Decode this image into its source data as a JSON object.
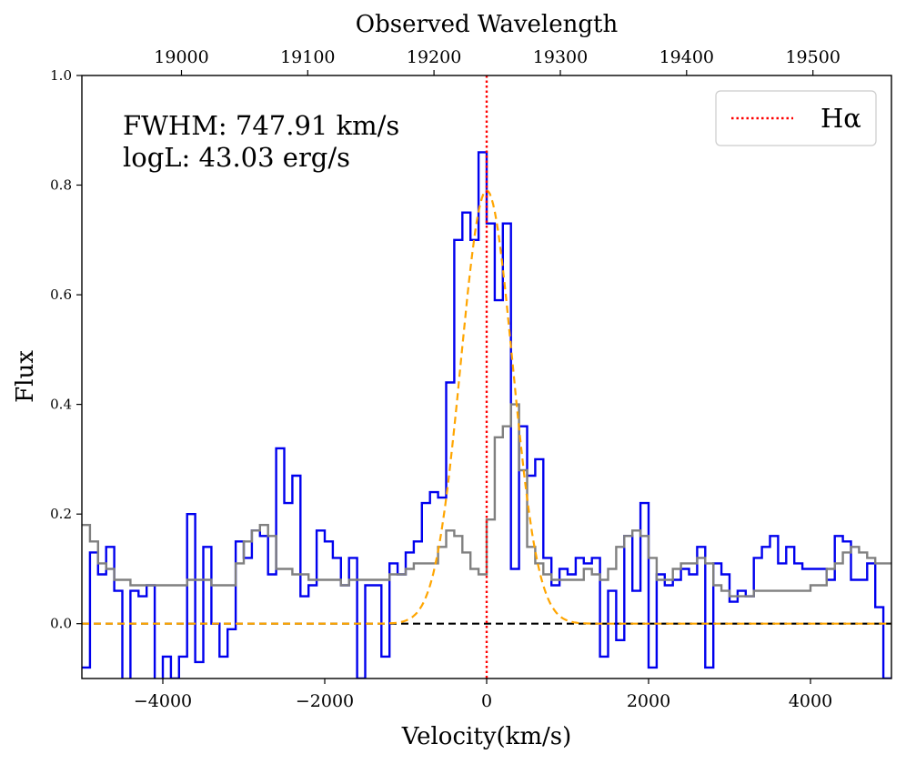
{
  "chart_data": {
    "type": "line",
    "title": "",
    "xlabel": "Velocity(km/s)",
    "ylabel": "Flux",
    "secondary_xlabel": "Observed Wavelength",
    "xlim": [
      -5000,
      5000
    ],
    "ylim": [
      -0.1,
      1.0
    ],
    "x_ticks": [
      -4000,
      -2000,
      0,
      2000,
      4000
    ],
    "x_tick_labels": [
      "−4000",
      "−2000",
      "0",
      "2000",
      "4000"
    ],
    "y_ticks": [
      0.0,
      0.2,
      0.4,
      0.6,
      0.8,
      1.0
    ],
    "y_tick_labels": [
      "0.0",
      "0.2",
      "0.4",
      "0.6",
      "0.8",
      "1.0"
    ],
    "top_ticks_velocity": [
      -3770,
      -2210,
      -650,
      910,
      2470,
      4030
    ],
    "top_tick_labels": [
      "19000",
      "19100",
      "19200",
      "19300",
      "19400",
      "19500"
    ],
    "annotations": [
      "FWHM: 747.91 km/s",
      "logL: 43.03 erg/s"
    ],
    "legend": {
      "position": "upper-right",
      "entries": [
        {
          "label": "Hα",
          "style": "red-dotted"
        }
      ]
    },
    "reference_lines": [
      {
        "name": "zero-line",
        "axis": "y",
        "value": 0.0,
        "style": "black-dashed"
      },
      {
        "name": "halpha-line",
        "axis": "x",
        "value": 0,
        "style": "red-dotted"
      }
    ],
    "series": [
      {
        "name": "spectrum",
        "color": "#0000ee",
        "step": true,
        "x": [
          -5000,
          -4900,
          -4800,
          -4700,
          -4600,
          -4500,
          -4400,
          -4300,
          -4200,
          -4100,
          -4000,
          -3900,
          -3800,
          -3700,
          -3600,
          -3500,
          -3400,
          -3300,
          -3200,
          -3100,
          -3000,
          -2900,
          -2800,
          -2700,
          -2600,
          -2500,
          -2400,
          -2300,
          -2200,
          -2100,
          -2000,
          -1900,
          -1800,
          -1700,
          -1600,
          -1500,
          -1400,
          -1300,
          -1200,
          -1100,
          -1000,
          -900,
          -800,
          -700,
          -600,
          -500,
          -400,
          -300,
          -200,
          -100,
          0,
          100,
          200,
          300,
          400,
          500,
          600,
          700,
          800,
          900,
          1000,
          1100,
          1200,
          1300,
          1400,
          1500,
          1600,
          1700,
          1800,
          1900,
          2000,
          2100,
          2200,
          2300,
          2400,
          2500,
          2600,
          2700,
          2800,
          2900,
          3000,
          3100,
          3200,
          3300,
          3400,
          3500,
          3600,
          3700,
          3800,
          3900,
          4000,
          4100,
          4200,
          4300,
          4400,
          4500,
          4600,
          4700,
          4800,
          4900
        ],
        "y": [
          -0.08,
          0.13,
          0.09,
          0.14,
          0.06,
          -0.12,
          0.06,
          0.05,
          0.07,
          -0.11,
          -0.06,
          -0.1,
          -0.06,
          0.2,
          -0.07,
          0.14,
          0.0,
          -0.06,
          -0.01,
          0.15,
          0.12,
          0.17,
          0.16,
          0.09,
          0.32,
          0.22,
          0.27,
          0.05,
          0.07,
          0.17,
          0.15,
          0.12,
          0.07,
          0.12,
          -0.1,
          0.07,
          0.07,
          -0.06,
          0.11,
          0.09,
          0.13,
          0.15,
          0.22,
          0.24,
          0.23,
          0.44,
          0.7,
          0.75,
          0.7,
          0.86,
          0.73,
          0.59,
          0.73,
          0.1,
          0.36,
          0.27,
          0.3,
          0.12,
          0.07,
          0.1,
          0.09,
          0.12,
          0.11,
          0.12,
          -0.06,
          0.06,
          -0.03,
          0.16,
          0.06,
          0.22,
          -0.08,
          0.09,
          0.07,
          0.08,
          0.1,
          0.09,
          0.14,
          -0.08,
          0.11,
          0.09,
          0.04,
          0.06,
          0.05,
          0.12,
          0.14,
          0.16,
          0.11,
          0.14,
          0.11,
          0.1,
          0.1,
          0.1,
          0.08,
          0.16,
          0.15,
          0.08,
          0.08,
          0.11,
          0.03,
          -0.1
        ]
      },
      {
        "name": "comparison",
        "color": "#808080",
        "step": true,
        "x": [
          -5000,
          -4900,
          -4800,
          -4700,
          -4600,
          -4500,
          -4400,
          -4300,
          -4200,
          -4100,
          -4000,
          -3900,
          -3800,
          -3700,
          -3600,
          -3500,
          -3400,
          -3300,
          -3200,
          -3100,
          -3000,
          -2900,
          -2800,
          -2700,
          -2600,
          -2500,
          -2400,
          -2300,
          -2200,
          -2100,
          -2000,
          -1900,
          -1800,
          -1700,
          -1600,
          -1500,
          -1400,
          -1300,
          -1200,
          -1100,
          -1000,
          -900,
          -800,
          -700,
          -600,
          -500,
          -400,
          -300,
          -200,
          -100,
          0,
          100,
          200,
          300,
          400,
          500,
          600,
          700,
          800,
          900,
          1000,
          1100,
          1200,
          1300,
          1400,
          1500,
          1600,
          1700,
          1800,
          1900,
          2000,
          2100,
          2200,
          2300,
          2400,
          2500,
          2600,
          2700,
          2800,
          2900,
          3000,
          3100,
          3200,
          3300,
          3400,
          3500,
          3600,
          3700,
          3800,
          3900,
          4000,
          4100,
          4200,
          4300,
          4400,
          4500,
          4600,
          4700,
          4800,
          4900
        ],
        "y": [
          0.18,
          0.15,
          0.11,
          0.1,
          0.08,
          0.08,
          0.07,
          0.07,
          0.07,
          0.07,
          0.07,
          0.07,
          0.07,
          0.08,
          0.08,
          0.08,
          0.07,
          0.07,
          0.07,
          0.11,
          0.15,
          0.17,
          0.18,
          0.16,
          0.1,
          0.1,
          0.09,
          0.09,
          0.08,
          0.08,
          0.08,
          0.08,
          0.07,
          0.08,
          0.08,
          0.08,
          0.08,
          0.08,
          0.09,
          0.09,
          0.1,
          0.11,
          0.11,
          0.11,
          0.14,
          0.17,
          0.16,
          0.13,
          0.1,
          0.09,
          0.19,
          0.34,
          0.36,
          0.4,
          0.28,
          0.14,
          0.11,
          0.09,
          0.08,
          0.08,
          0.08,
          0.08,
          0.1,
          0.09,
          0.08,
          0.1,
          0.14,
          0.16,
          0.17,
          0.16,
          0.12,
          0.08,
          0.08,
          0.1,
          0.11,
          0.11,
          0.12,
          0.11,
          0.07,
          0.06,
          0.05,
          0.05,
          0.05,
          0.06,
          0.06,
          0.06,
          0.06,
          0.06,
          0.06,
          0.06,
          0.07,
          0.07,
          0.1,
          0.11,
          0.13,
          0.14,
          0.13,
          0.12,
          0.11,
          0.11
        ]
      },
      {
        "name": "gaussian-fit",
        "color": "#ffa500",
        "style": "dashed",
        "amplitude": 0.79,
        "center": 0,
        "fwhm": 747.91
      }
    ]
  }
}
